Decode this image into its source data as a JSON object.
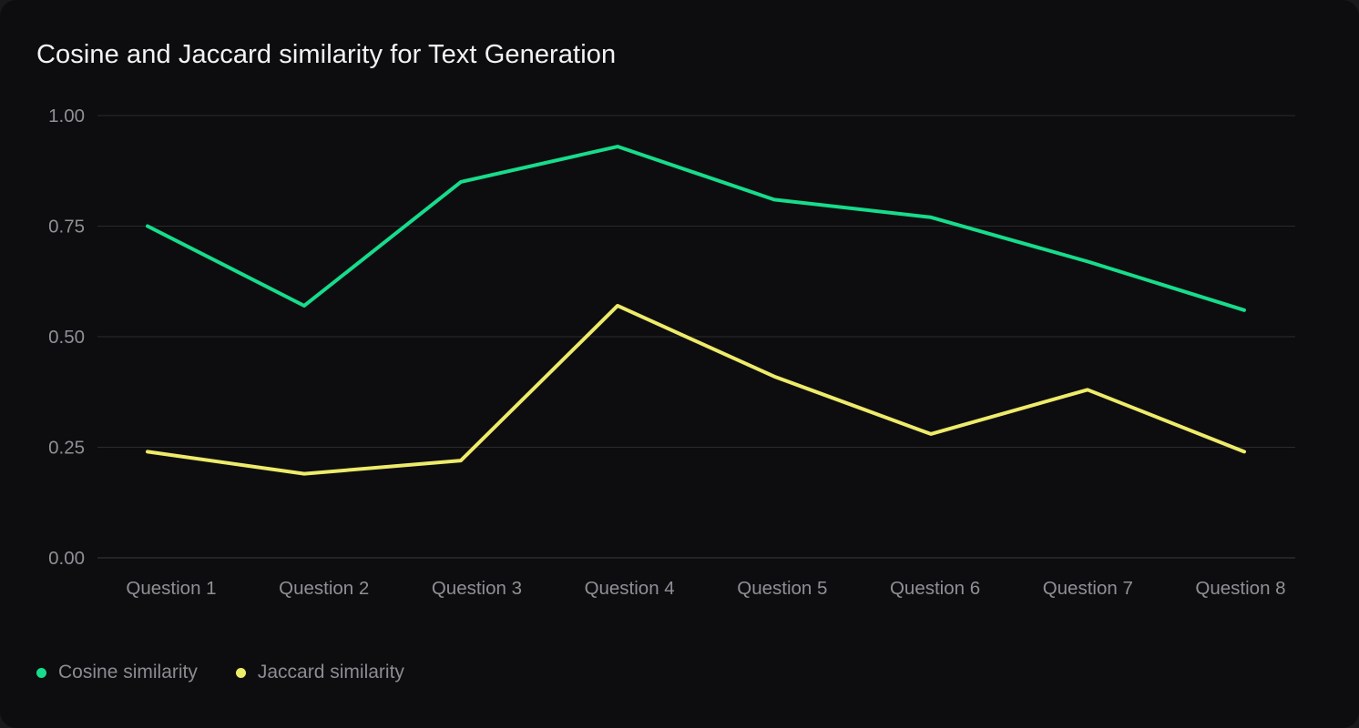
{
  "chart_data": {
    "type": "line",
    "title": "Cosine and Jaccard similarity for Text Generation",
    "categories": [
      "Question 1",
      "Question 2",
      "Question 3",
      "Question 4",
      "Question 5",
      "Question 6",
      "Question 7",
      "Question 8"
    ],
    "series": [
      {
        "name": "Cosine similarity",
        "color": "#17dc8c",
        "values": [
          0.75,
          0.57,
          0.85,
          0.93,
          0.81,
          0.77,
          0.67,
          0.56
        ]
      },
      {
        "name": "Jaccard similarity",
        "color": "#eeeb6a",
        "values": [
          0.24,
          0.19,
          0.22,
          0.57,
          0.41,
          0.28,
          0.38,
          0.24
        ]
      }
    ],
    "xlabel": "",
    "ylabel": "",
    "ylim": [
      0.0,
      1.0
    ],
    "yticks": {
      "values": [
        1.0,
        0.75,
        0.5,
        0.25,
        0.0
      ],
      "labels": [
        "1.00",
        "0.75",
        "0.50",
        "0.25",
        "0.00"
      ]
    },
    "grid": true,
    "legend_position": "bottom-left"
  },
  "legend": {
    "items": [
      {
        "label": "Cosine similarity",
        "color": "#17dc8c"
      },
      {
        "label": "Jaccard similarity",
        "color": "#eeeb6a"
      }
    ]
  },
  "colors": {
    "page_background": "#19191c",
    "card_background": "#0d0d0f",
    "gridline": "#2a2a2c",
    "baseline": "#3c3c3f",
    "axis_text": "#8f8f96",
    "title_text": "#f3f3f4",
    "legend_text": "#8b8b92",
    "cosine_line": "#17dc8c",
    "jaccard_line": "#eeeb6a"
  }
}
